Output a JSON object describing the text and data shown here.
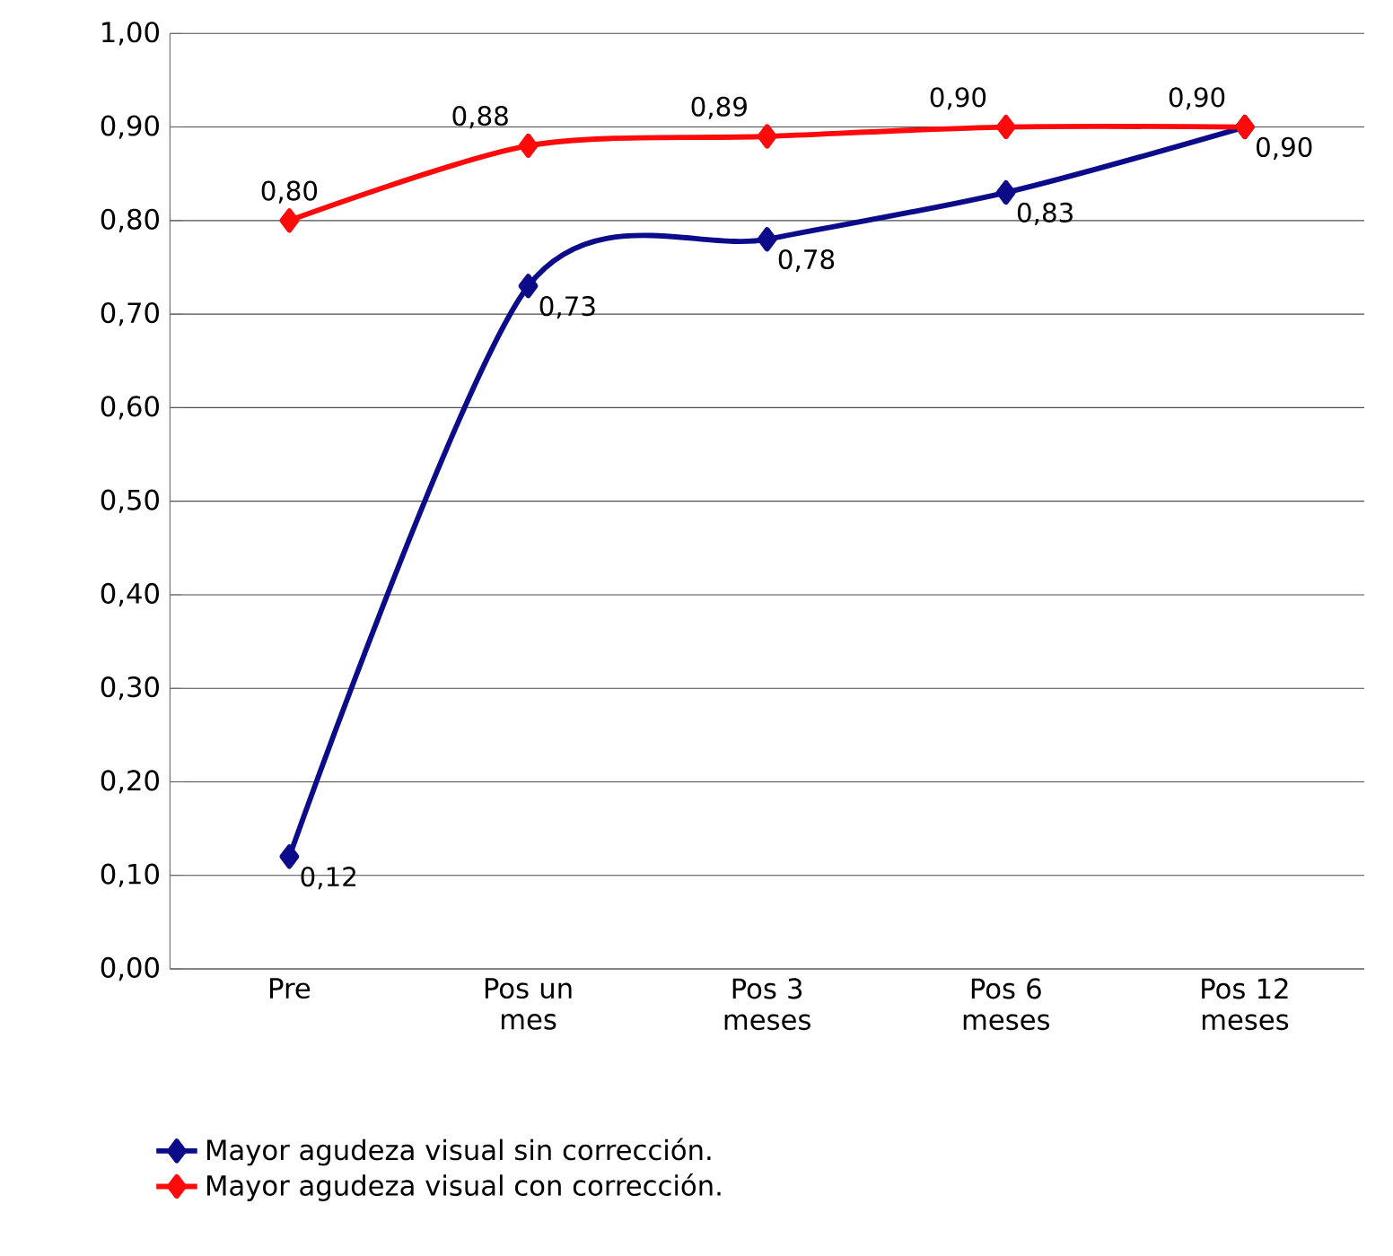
{
  "chart_data": {
    "type": "line",
    "categories": [
      "Pre",
      "Pos un mes",
      "Pos 3 meses",
      "Pos 6 meses",
      "Pos 12 meses"
    ],
    "series": [
      {
        "name": "Mayor agudeza visual sin corrección.",
        "color": "#0c0c8a",
        "values": [
          0.12,
          0.73,
          0.78,
          0.83,
          0.9
        ],
        "value_labels": [
          "0,12",
          "0,73",
          "0,78",
          "0,83",
          "0,90"
        ]
      },
      {
        "name": "Mayor agudeza visual con corrección.",
        "color": "#ff0a0a",
        "values": [
          0.8,
          0.88,
          0.89,
          0.9,
          0.9
        ],
        "value_labels": [
          "0,80",
          "0,88",
          "0,89",
          "0,90",
          "0,90"
        ]
      }
    ],
    "ylim": [
      0,
      1
    ],
    "yticks": [
      {
        "value": 0,
        "label": "0,00"
      },
      {
        "value": 0.1,
        "label": "0,10"
      },
      {
        "value": 0.2,
        "label": "0,20"
      },
      {
        "value": 0.3,
        "label": "0,30"
      },
      {
        "value": 0.4,
        "label": "0,40"
      },
      {
        "value": 0.5,
        "label": "0,50"
      },
      {
        "value": 0.6,
        "label": "0,60"
      },
      {
        "value": 0.7,
        "label": "0,70"
      },
      {
        "value": 0.8,
        "label": "0,80"
      },
      {
        "value": 0.9,
        "label": "0,90"
      },
      {
        "value": 1,
        "label": "1,00"
      }
    ],
    "grid": "y",
    "legend": "bottom",
    "marker": "diamond",
    "line_style": "solid"
  }
}
